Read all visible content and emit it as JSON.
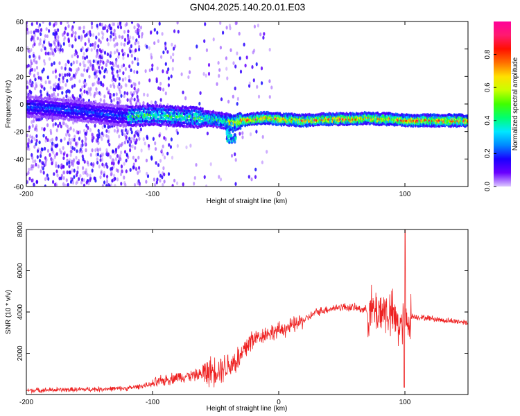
{
  "title": "GN04.2025.140.20.01.E03",
  "chart_data": [
    {
      "type": "heatmap",
      "xlabel": "Height of straight line (km)",
      "ylabel": "Frequency (Hz)",
      "xlim": [
        -200,
        150
      ],
      "ylim": [
        -60,
        60
      ],
      "xticks": [
        -200,
        -100,
        0,
        100
      ],
      "yticks": [
        60,
        40,
        20,
        0,
        -20,
        -40,
        -60
      ],
      "grid": false,
      "ridge": {
        "x": [
          -200,
          -180,
          -160,
          -140,
          -120,
          -100,
          -80,
          -60,
          -50,
          -40,
          -35,
          -30,
          -20,
          -10,
          0,
          20,
          40,
          60,
          70,
          80,
          90,
          100,
          120,
          150
        ],
        "freq": [
          -2,
          -3,
          -5,
          -7,
          -9,
          -8,
          -9,
          -10,
          -11,
          -13,
          -14,
          -12,
          -11,
          -10,
          -11,
          -12,
          -11,
          -11,
          -10,
          -11,
          -11,
          -12,
          -12,
          -12
        ]
      },
      "colorbar": {
        "label": "Normalized spectral amplitude",
        "range": [
          0.0,
          1.0
        ],
        "ticks": [
          "0.0",
          "0.2",
          "0.4",
          "0.6",
          "0.8"
        ],
        "colormap": [
          "#dcc8ff",
          "#6a00ff",
          "#1a00ff",
          "#0088ff",
          "#00e8ff",
          "#00ff70",
          "#40ff00",
          "#c8ff00",
          "#ffe000",
          "#ff7000",
          "#ff1000",
          "#ff1a70",
          "#ff0099"
        ]
      }
    },
    {
      "type": "line",
      "xlabel": "Height of straight line (km)",
      "ylabel": "SNR (10 * v/v)",
      "xlim": [
        -200,
        150
      ],
      "ylim": [
        0,
        8000
      ],
      "xticks": [
        -200,
        -100,
        0,
        100
      ],
      "yticks": [
        2000,
        4000,
        6000,
        8000
      ],
      "grid": false,
      "series": [
        {
          "color": "#ee2222",
          "x": [
            -200,
            -150,
            -120,
            -100,
            -90,
            -80,
            -70,
            -60,
            -50,
            -40,
            -30,
            -25,
            -20,
            -10,
            0,
            10,
            20,
            30,
            40,
            50,
            60,
            70,
            75,
            80,
            85,
            90,
            95,
            100,
            105,
            110,
            120,
            130,
            150
          ],
          "y": [
            200,
            250,
            300,
            500,
            700,
            850,
            900,
            1000,
            1200,
            1400,
            1800,
            2400,
            2700,
            2950,
            3100,
            3300,
            3600,
            4000,
            4150,
            4250,
            4200,
            4100,
            4000,
            4100,
            4050,
            3800,
            3400,
            3300,
            3800,
            3750,
            3700,
            3600,
            3500
          ]
        }
      ]
    }
  ]
}
